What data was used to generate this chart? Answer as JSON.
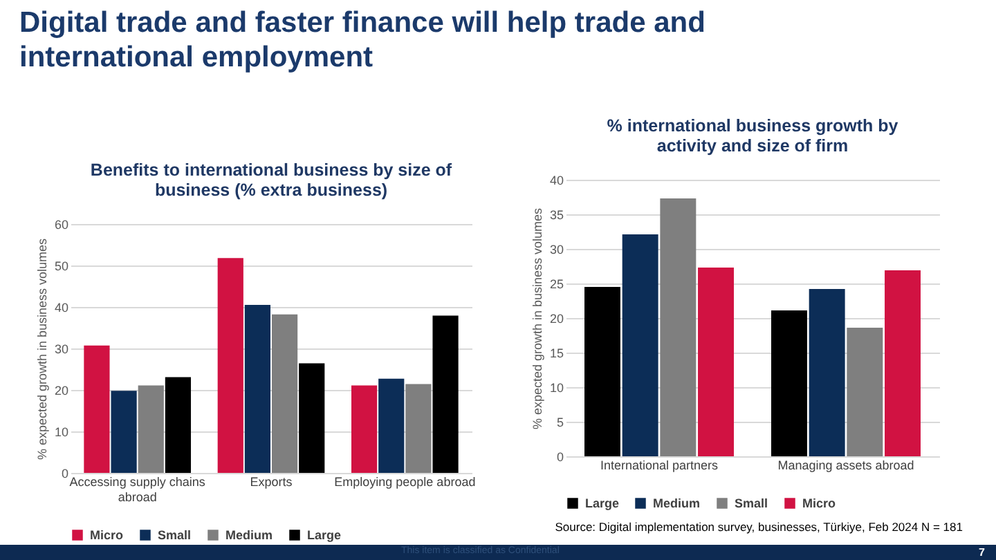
{
  "chart_data": [
    {
      "type": "bar",
      "title": "Benefits to international business by size of business (% extra business)",
      "ylabel": "% expected growth in business volumes",
      "categories": [
        "Accessing supply chains abroad",
        "Exports",
        "Employing people abroad"
      ],
      "series": [
        {
          "name": "Micro",
          "color": "#d11242",
          "values": [
            30.7,
            51.8,
            21.1
          ]
        },
        {
          "name": "Small",
          "color": "#0c2d57",
          "values": [
            19.8,
            40.5,
            22.7
          ]
        },
        {
          "name": "Medium",
          "color": "#7f7f7f",
          "values": [
            21.1,
            38.2,
            21.4
          ]
        },
        {
          "name": "Large",
          "color": "#000000",
          "values": [
            23.1,
            26.4,
            37.9
          ]
        }
      ],
      "ylim": [
        0,
        60
      ],
      "yticks": [
        0,
        10,
        20,
        30,
        40,
        50,
        60
      ],
      "grid": "y",
      "legend": "bottom",
      "annotations": [
        "Digital trade and faster finance will help trade and international employment",
        "Source: Digital implementation survey, businesses, Türkiye, Feb 2024 N = 181",
        "This item is classified as Confidential",
        "7"
      ]
    },
    {
      "type": "bar",
      "title": "% international business growth by activity and size of firm",
      "ylabel": "% expected growth in business volumes",
      "categories": [
        "International partners",
        "Managing assets abroad"
      ],
      "series": [
        {
          "name": "Large",
          "color": "#000000",
          "values": [
            24.5,
            21.1
          ]
        },
        {
          "name": "Medium",
          "color": "#0c2d57",
          "values": [
            32.1,
            24.2
          ]
        },
        {
          "name": "Small",
          "color": "#7f7f7f",
          "values": [
            37.3,
            18.6
          ]
        },
        {
          "name": "Micro",
          "color": "#d11242",
          "values": [
            27.3,
            26.9
          ]
        }
      ],
      "ylim": [
        0,
        40
      ],
      "yticks": [
        0,
        5,
        10,
        15,
        20,
        25,
        30,
        35,
        40
      ],
      "grid": "y",
      "legend": "bottom"
    }
  ]
}
